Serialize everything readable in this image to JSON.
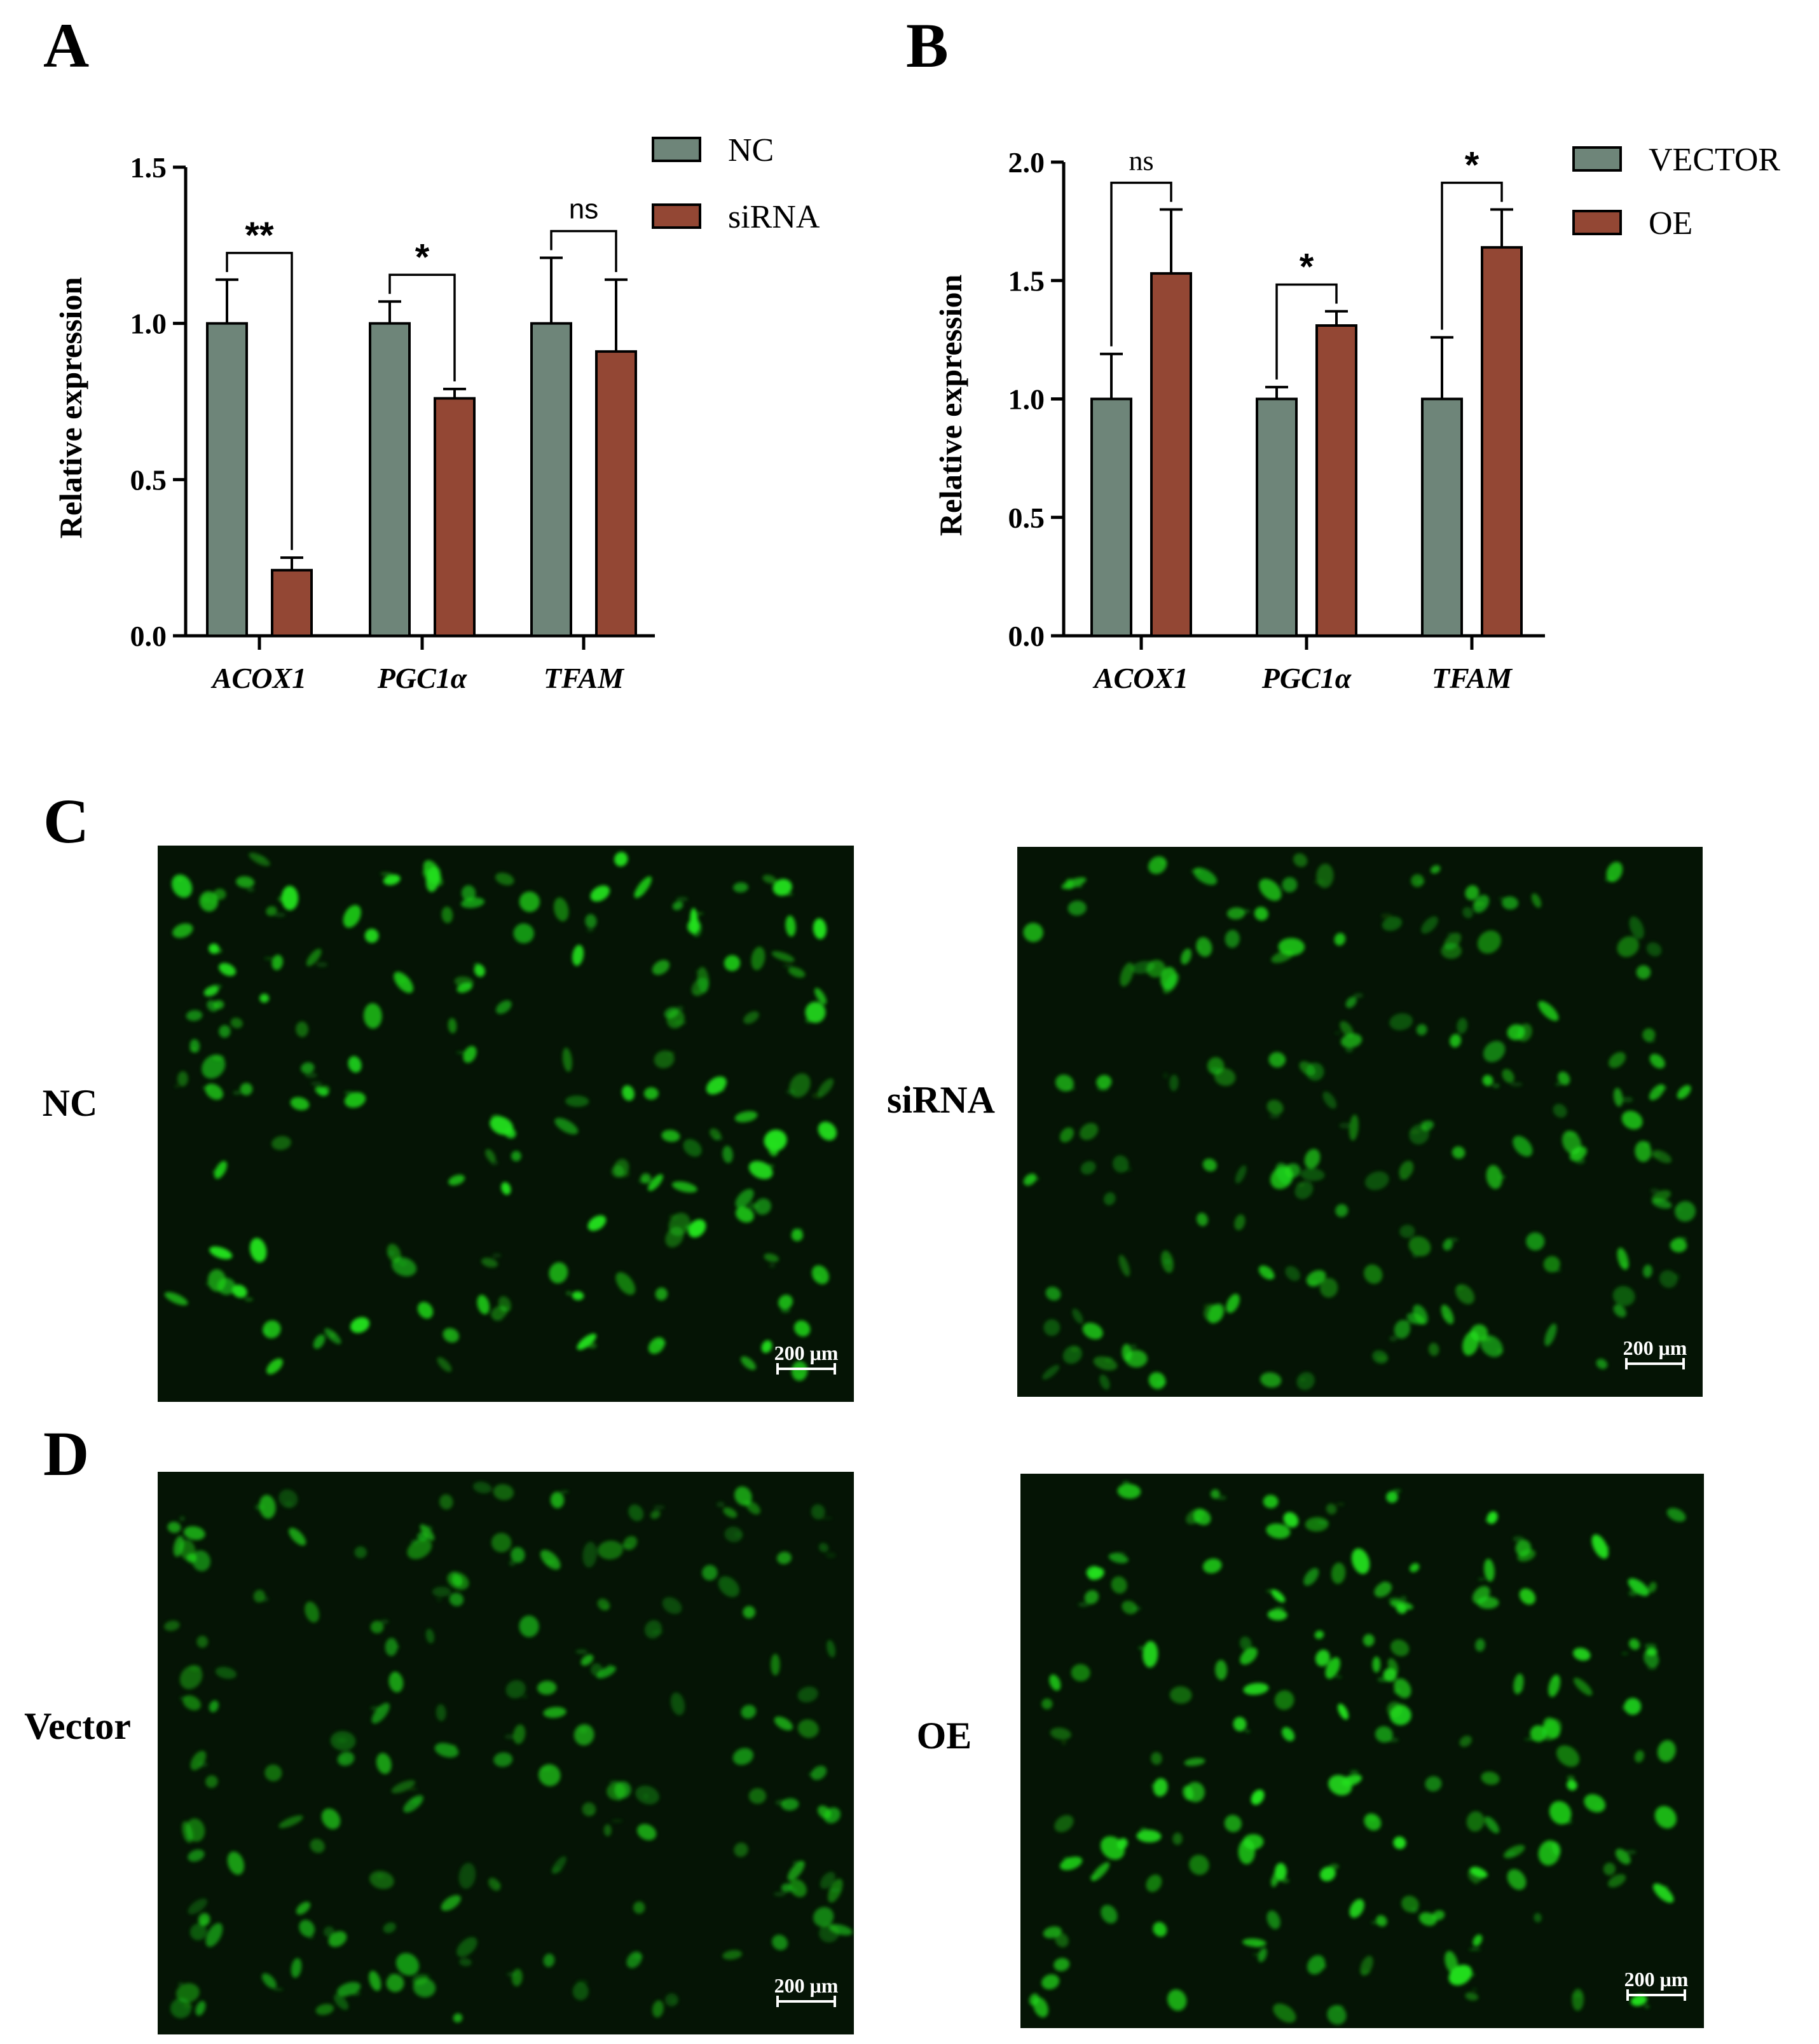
{
  "panels": {
    "A": "A",
    "B": "B",
    "C": "C",
    "D": "D"
  },
  "colors": {
    "nc": "#6e8579",
    "treat": "#934734",
    "axis": "#000000",
    "green": "#22e01c"
  },
  "chart_data": [
    {
      "type": "bar",
      "panel": "A",
      "categories": [
        "ACOX1",
        "PGC1α",
        "TFAM"
      ],
      "series": [
        {
          "name": "NC",
          "values": [
            1.0,
            1.0,
            1.0
          ],
          "errors": [
            0.14,
            0.07,
            0.21
          ]
        },
        {
          "name": "siRNA",
          "values": [
            0.21,
            0.76,
            0.91
          ],
          "errors": [
            0.04,
            0.03,
            0.23
          ]
        }
      ],
      "significance": [
        "**",
        "*",
        "ns"
      ],
      "ylabel": "Relative expression",
      "ylim": [
        0,
        1.5
      ],
      "yticks": [
        0.0,
        0.5,
        1.0,
        1.5
      ],
      "ytick_labels": [
        "0.0",
        "0.5",
        "1.0",
        "1.5"
      ],
      "legend": "top-right"
    },
    {
      "type": "bar",
      "panel": "B",
      "categories": [
        "ACOX1",
        "PGC1α",
        "TFAM"
      ],
      "series": [
        {
          "name": "VECTOR",
          "values": [
            1.0,
            1.0,
            1.0
          ],
          "errors": [
            0.19,
            0.05,
            0.26
          ]
        },
        {
          "name": "OE",
          "values": [
            1.53,
            1.31,
            1.64
          ],
          "errors": [
            0.27,
            0.06,
            0.16
          ]
        }
      ],
      "significance": [
        "ns",
        "*",
        "*"
      ],
      "ylabel": "Relative expression",
      "ylim": [
        0,
        2.0
      ],
      "yticks": [
        0.0,
        0.5,
        1.0,
        1.5,
        2.0
      ],
      "ytick_labels": [
        "0.0",
        "0.5",
        "1.0",
        "1.5",
        "2.0"
      ],
      "legend": "top-right"
    }
  ],
  "images": [
    {
      "label": "NC",
      "scale": "200 μm",
      "intensity": 1.0
    },
    {
      "label": "siRNA",
      "scale": "200 μm",
      "intensity": 0.8
    },
    {
      "label": "Vector",
      "scale": "200 μm",
      "intensity": 0.7
    },
    {
      "label": "OE",
      "scale": "200 μm",
      "intensity": 1.0
    }
  ]
}
